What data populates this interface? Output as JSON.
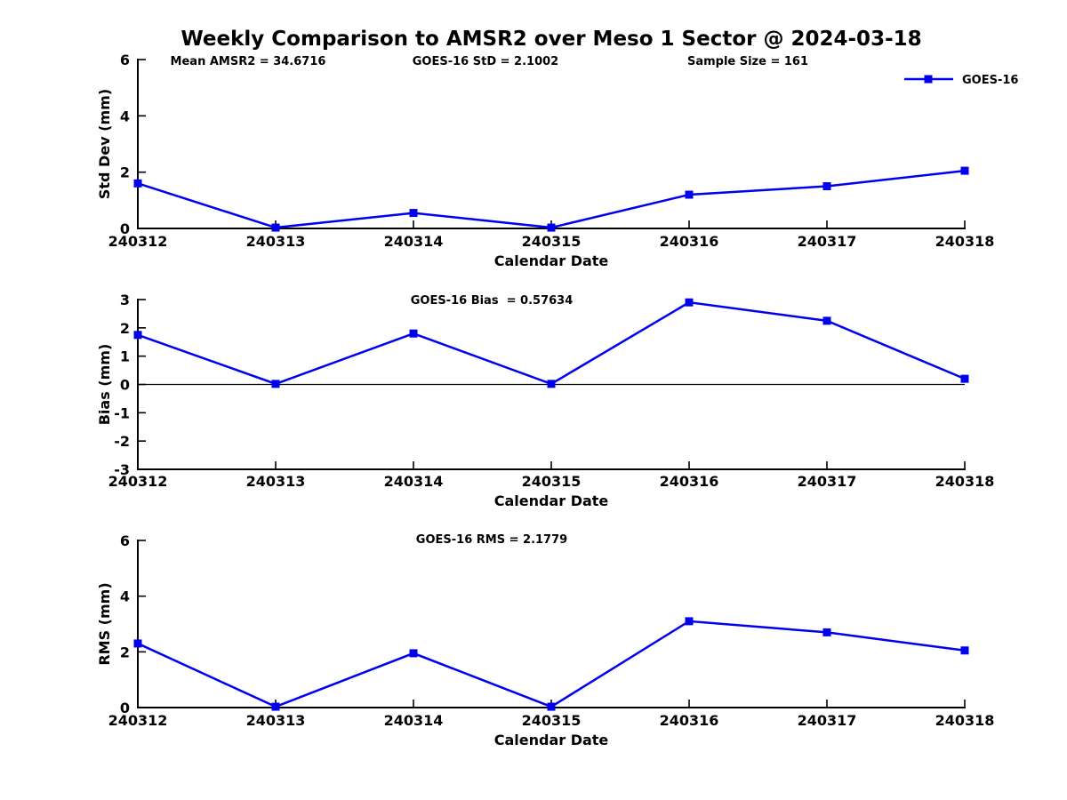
{
  "page_title": "Weekly Comparison to AMSR2 over Meso 1 Sector @ 2024-03-18",
  "colors": {
    "line": "#0000EE",
    "axis": "#000000",
    "text": "#000000"
  },
  "chart_data": [
    {
      "type": "line",
      "name": "std-dev",
      "categories": [
        "240312",
        "240313",
        "240314",
        "240315",
        "240316",
        "240317",
        "240318"
      ],
      "series": [
        {
          "name": "GOES-16",
          "values": [
            1.6,
            0.03,
            0.55,
            0.03,
            1.2,
            1.5,
            2.05
          ]
        }
      ],
      "xlabel": "Calendar Date",
      "ylabel": "Std Dev (mm)",
      "ylim": [
        0,
        6
      ],
      "yticks": [
        0,
        2,
        4,
        6
      ],
      "grid": false,
      "annotations": [
        "Mean AMSR2 = 34.6716",
        "GOES-16 StD = 2.1002",
        "Sample Size = 161"
      ],
      "legend": {
        "label": "GOES-16",
        "position": "top-right",
        "marker": "square"
      }
    },
    {
      "type": "line",
      "name": "bias",
      "title": "GOES-16 Bias  = 0.57634",
      "categories": [
        "240312",
        "240313",
        "240314",
        "240315",
        "240316",
        "240317",
        "240318"
      ],
      "series": [
        {
          "name": "GOES-16",
          "values": [
            1.75,
            0.02,
            1.8,
            0.02,
            2.9,
            2.25,
            0.2
          ]
        }
      ],
      "xlabel": "Calendar Date",
      "ylabel": "Bias (mm)",
      "ylim": [
        -3,
        3
      ],
      "yticks": [
        3,
        2,
        1,
        0,
        -1,
        -2,
        -3
      ],
      "grid": false,
      "zero_line": true
    },
    {
      "type": "line",
      "name": "rms",
      "title": "GOES-16 RMS = 2.1779",
      "categories": [
        "240312",
        "240313",
        "240314",
        "240315",
        "240316",
        "240317",
        "240318"
      ],
      "series": [
        {
          "name": "GOES-16",
          "values": [
            2.3,
            0.03,
            1.95,
            0.03,
            3.1,
            2.7,
            2.05
          ]
        }
      ],
      "xlabel": "Calendar Date",
      "ylabel": "RMS (mm)",
      "ylim": [
        0,
        6
      ],
      "yticks": [
        0,
        2,
        4,
        6
      ],
      "grid": false
    }
  ]
}
